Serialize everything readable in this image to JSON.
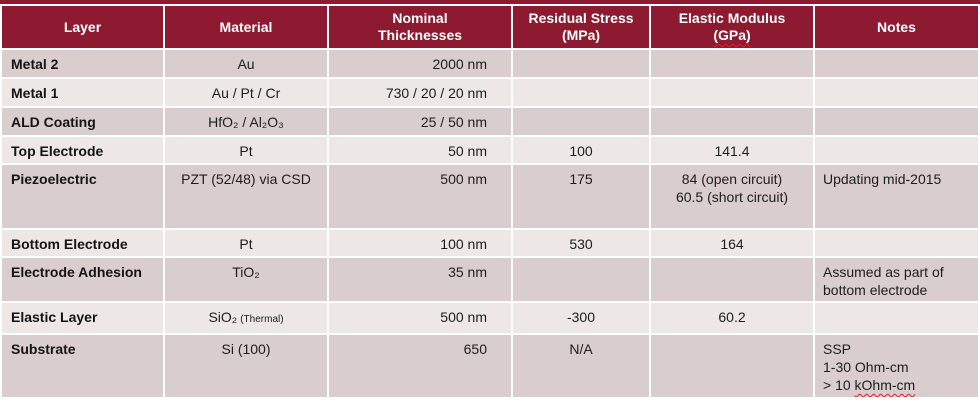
{
  "colors": {
    "header_bg": "#8E1A31",
    "band_dark": "#D9CDCD",
    "band_light": "#EDE8E6",
    "header_text": "#FFFFFF",
    "spellcheck_underline": "#E02020"
  },
  "header": {
    "layer": "Layer",
    "material": "Material",
    "thickness_line1": "Nominal",
    "thickness_line2": "Thicknesses",
    "stress_line1": "Residual Stress",
    "stress_line2": "(MPa)",
    "modulus_line1": "Elastic Modulus",
    "modulus_line2": "(GPa)",
    "notes": "Notes"
  },
  "rows": [
    {
      "layer": "Metal 2",
      "material": "Au",
      "thickness": "2000 nm",
      "stress": "",
      "modulus": "",
      "notes": ""
    },
    {
      "layer": "Metal 1",
      "material": "Au / Pt / Cr",
      "thickness": "730 / 20 / 20 nm",
      "stress": "",
      "modulus": "",
      "notes": ""
    },
    {
      "layer": "ALD Coating",
      "material": "HfO₂ / Al₂O₃",
      "thickness": "25 / 50 nm",
      "stress": "",
      "modulus": "",
      "notes": ""
    },
    {
      "layer": "Top Electrode",
      "material": "Pt",
      "thickness": "50 nm",
      "stress": "100",
      "modulus": "141.4",
      "notes": ""
    },
    {
      "layer": "Piezoelectric",
      "material": "PZT (52/48)  via CSD",
      "thickness": "500 nm",
      "stress": "175",
      "modulus_line1": "84 (open circuit)",
      "modulus_line2": "60.5 (short circuit)",
      "notes": "Updating mid-2015"
    },
    {
      "layer": "Bottom Electrode",
      "material": "Pt",
      "thickness": "100 nm",
      "stress": "530",
      "modulus": "164",
      "notes": ""
    },
    {
      "layer": "Electrode Adhesion",
      "material": "TiO₂",
      "thickness": "35 nm",
      "stress": "",
      "modulus": "",
      "notes": "Assumed as part of bottom electrode"
    },
    {
      "layer": "Elastic Layer",
      "material": "SiO₂",
      "material_note": "(Thermal)",
      "thickness": "500 nm",
      "stress": "-300",
      "modulus": "60.2",
      "notes": ""
    },
    {
      "layer": "Substrate",
      "material": "Si (100)",
      "thickness": "650",
      "stress": "N/A",
      "modulus": "",
      "notes_line1": "SSP",
      "notes_line2": "1-30 Ohm-cm",
      "notes_line3_prefix": "> 10 ",
      "notes_line3_word": "kOhm-cm"
    }
  ]
}
